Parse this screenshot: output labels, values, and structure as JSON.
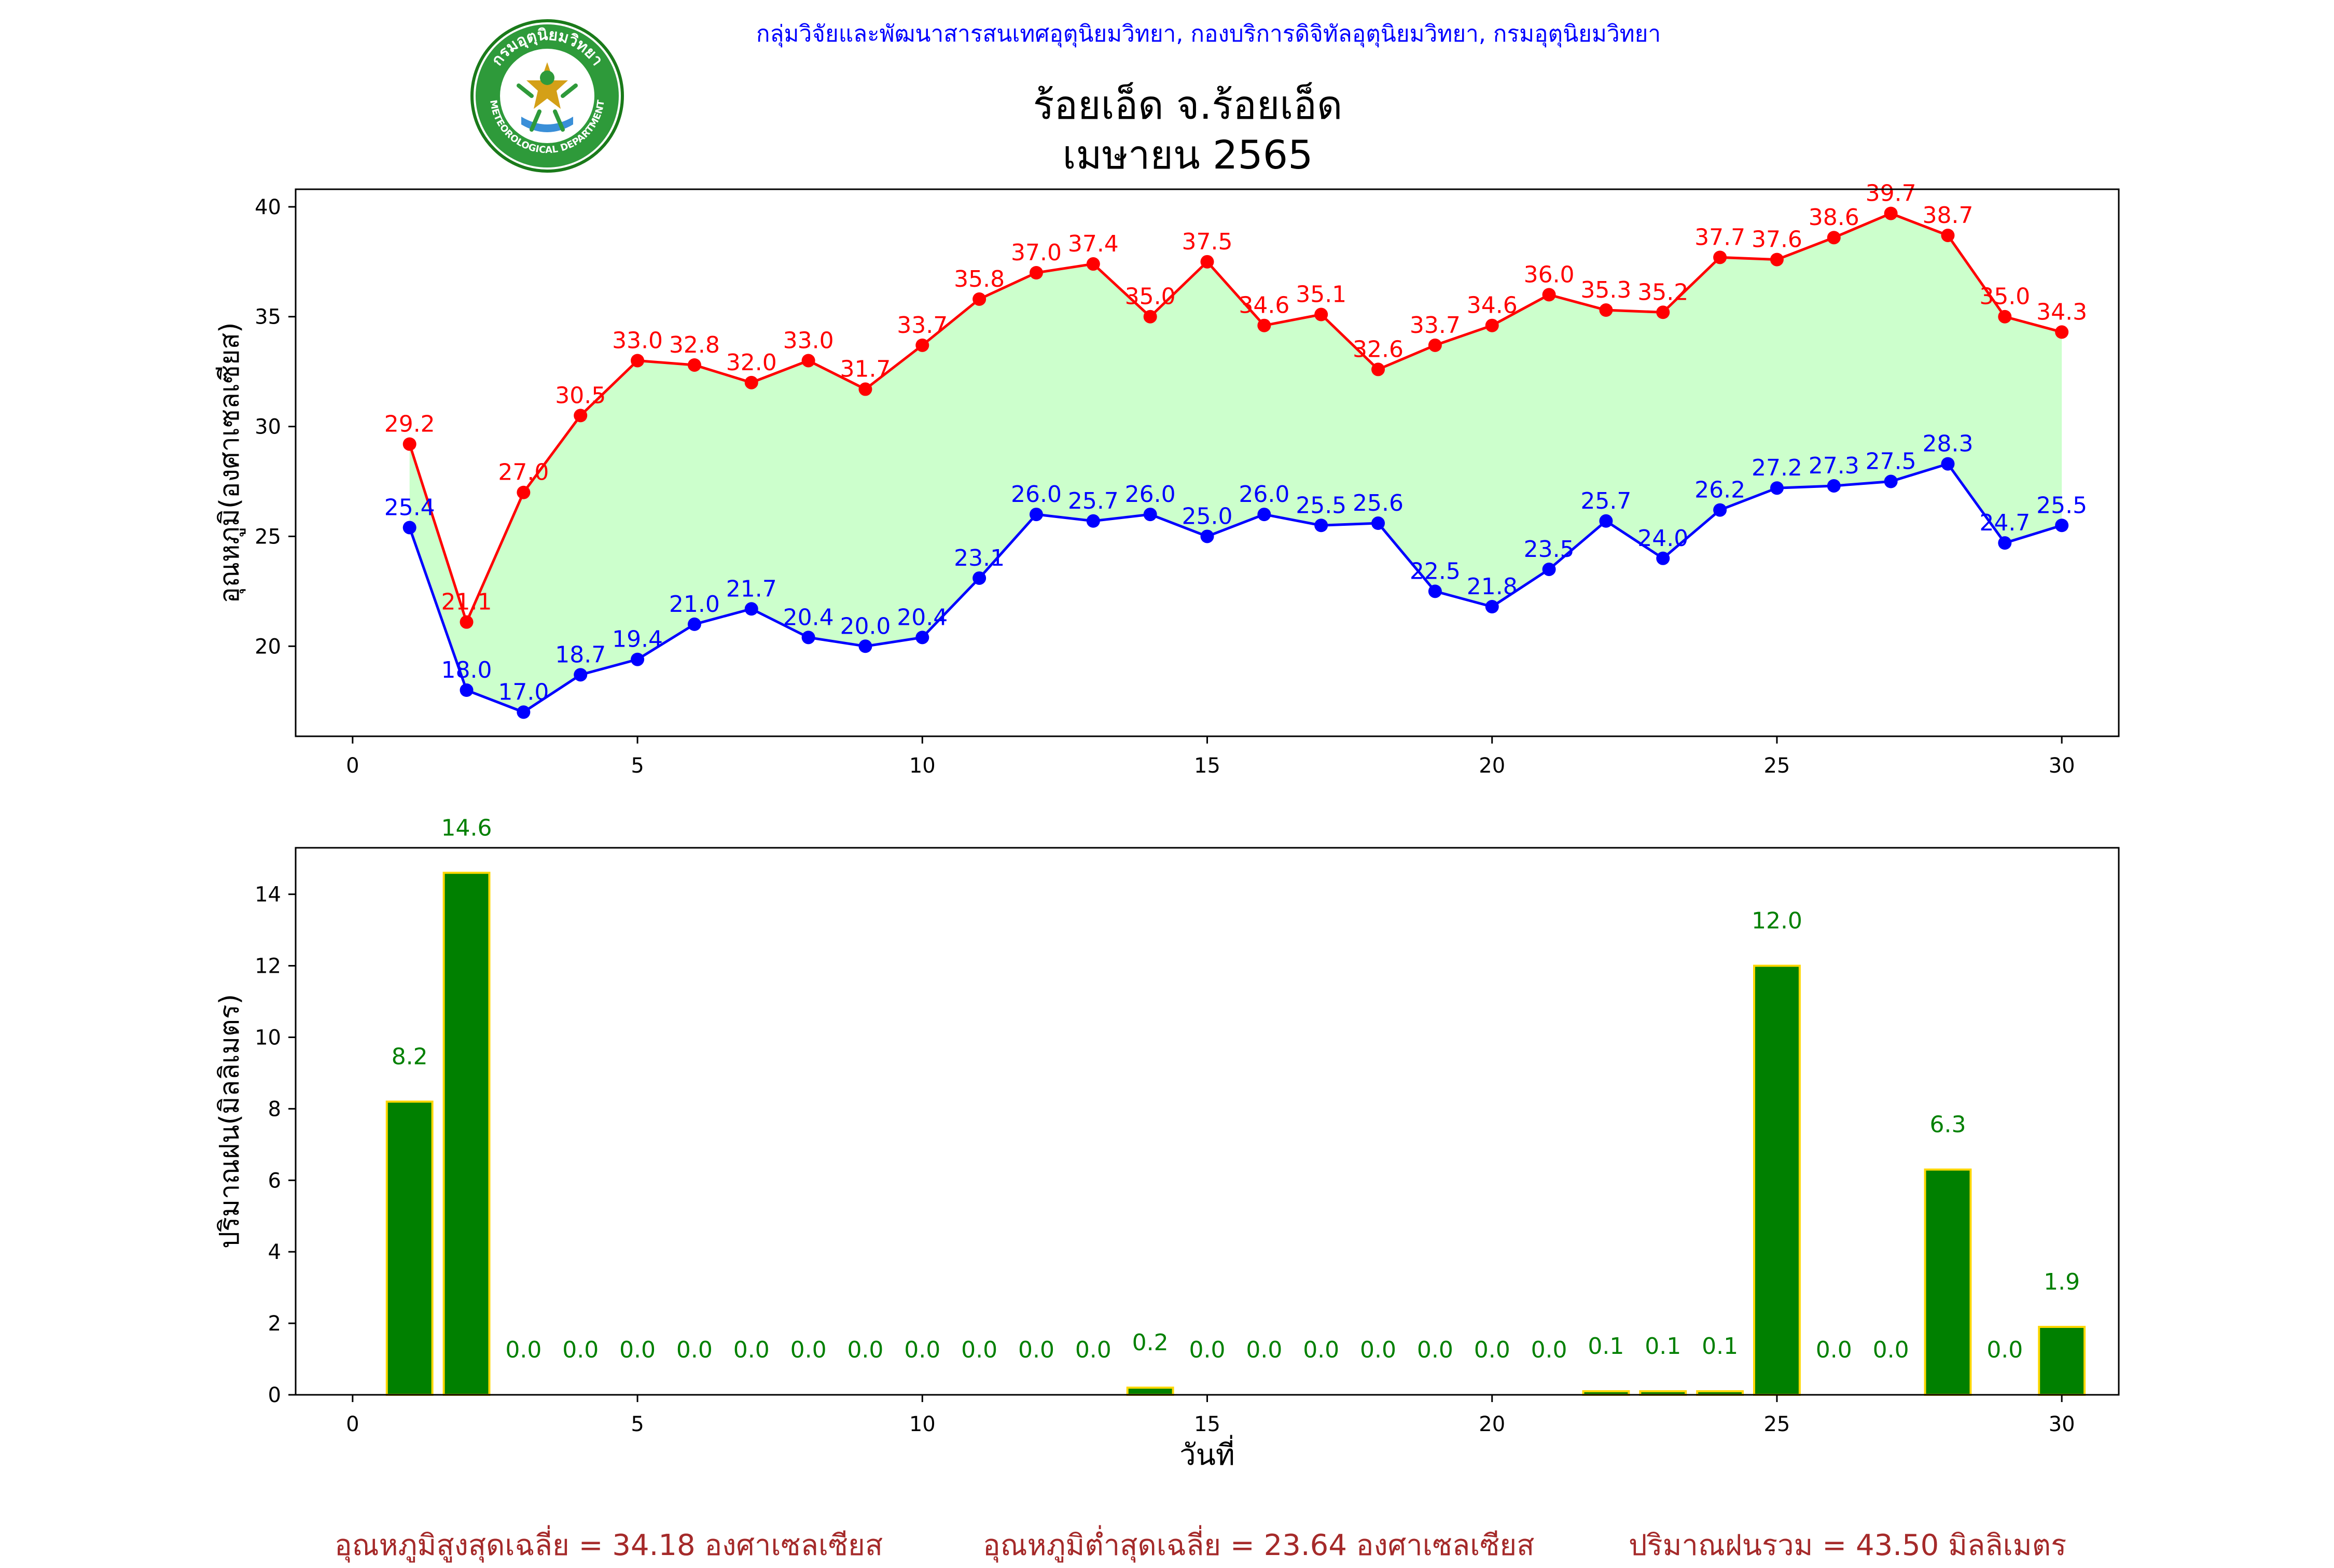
{
  "header": {
    "credit": "กลุ่มวิจัยและพัฒนาสารสนเทศอุตุนิยมวิทยา, กองบริการดิจิทัลอุตุนิยมวิทยา, กรมอุตุนิยมวิทยา",
    "title_line1": "ร้อยเอ็ด จ.ร้อยเอ็ด",
    "title_line2": "เมษายน 2565",
    "logo_text_top": "กรมอุตุนิยมวิทยา",
    "logo_text_bottom": "METEOROLOGICAL DEPARTMENT"
  },
  "colors": {
    "max_line": "#ff0000",
    "min_line": "#0000ff",
    "fill": "#ccffcc",
    "bar_fill": "#008000",
    "bar_edge": "#ffd700",
    "bar_label": "#008000",
    "footer_text": "#a52a2a"
  },
  "chart_data": [
    {
      "type": "line",
      "ylabel": "อุณหภูมิ(องศาเซลเซียส)",
      "xlabel": "",
      "xlim": [
        -1,
        31
      ],
      "ylim": [
        15.9,
        40.8
      ],
      "xticks": [
        0,
        5,
        10,
        15,
        20,
        25,
        30
      ],
      "yticks": [
        20,
        25,
        30,
        35,
        40
      ],
      "x": [
        1,
        2,
        3,
        4,
        5,
        6,
        7,
        8,
        9,
        10,
        11,
        12,
        13,
        14,
        15,
        16,
        17,
        18,
        19,
        20,
        21,
        22,
        23,
        24,
        25,
        26,
        27,
        28,
        29,
        30
      ],
      "series": [
        {
          "values": [
            29.2,
            21.1,
            27.0,
            30.5,
            33.0,
            32.8,
            32.0,
            33.0,
            31.7,
            33.7,
            35.8,
            37.0,
            37.4,
            35.0,
            37.5,
            34.6,
            35.1,
            32.6,
            33.7,
            34.6,
            36.0,
            35.3,
            35.2,
            37.7,
            37.6,
            38.6,
            39.7,
            38.7,
            35.0,
            34.3
          ]
        },
        {
          "values": [
            25.4,
            18.0,
            17.0,
            18.7,
            19.4,
            21.0,
            21.7,
            20.4,
            20.0,
            20.4,
            23.1,
            26.0,
            25.7,
            26.0,
            25.0,
            26.0,
            25.5,
            25.6,
            22.5,
            21.8,
            23.5,
            25.7,
            24.0,
            26.2,
            27.2,
            27.3,
            27.5,
            28.3,
            24.7,
            25.5
          ]
        }
      ]
    },
    {
      "type": "bar",
      "ylabel": "ปริมาณฝน(มิลลิเมตร)",
      "xlabel": "วันที่",
      "xlim": [
        -1,
        31
      ],
      "ylim": [
        0,
        15.3
      ],
      "xticks": [
        0,
        5,
        10,
        15,
        20,
        25,
        30
      ],
      "yticks": [
        0,
        2,
        4,
        6,
        8,
        10,
        12,
        14
      ],
      "categories": [
        1,
        2,
        3,
        4,
        5,
        6,
        7,
        8,
        9,
        10,
        11,
        12,
        13,
        14,
        15,
        16,
        17,
        18,
        19,
        20,
        21,
        22,
        23,
        24,
        25,
        26,
        27,
        28,
        29,
        30
      ],
      "values": [
        8.2,
        14.6,
        0.0,
        0.0,
        0.0,
        0.0,
        0.0,
        0.0,
        0.0,
        0.0,
        0.0,
        0.0,
        0.0,
        0.2,
        0.0,
        0.0,
        0.0,
        0.0,
        0.0,
        0.0,
        0.0,
        0.1,
        0.1,
        0.1,
        12.0,
        0.0,
        0.0,
        6.3,
        0.0,
        1.9
      ]
    }
  ],
  "footer": {
    "avg_max": "อุณหภูมิสูงสุดเฉลี่ย = 34.18 องศาเซลเซียส",
    "avg_min": "อุณหภูมิต่ำสุดเฉลี่ย = 23.64 องศาเซลเซียส",
    "total_rain": "ปริมาณฝนรวม = 43.50 มิลลิเมตร"
  }
}
